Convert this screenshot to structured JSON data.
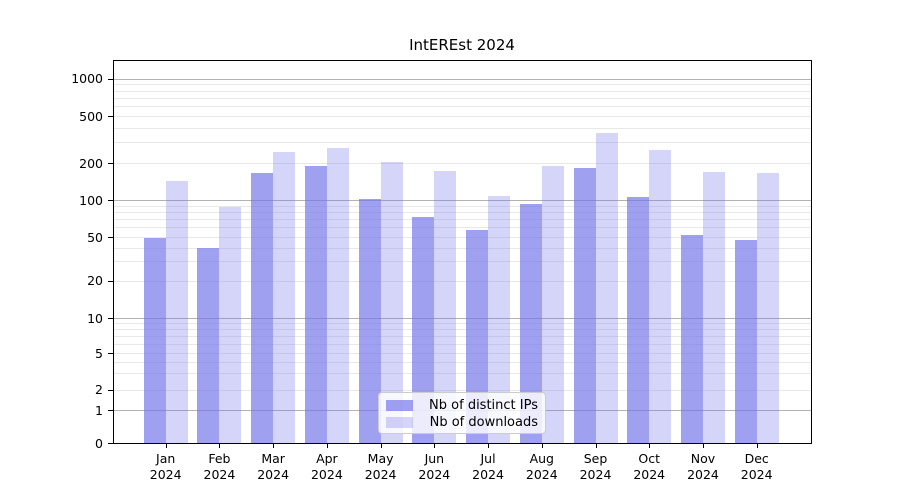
{
  "title": "IntEREst 2024",
  "chart_data": {
    "type": "bar",
    "title": "IntEREst 2024",
    "scale": "log-like (asinh/symlog, includes 0)",
    "categories": [
      "Jan 2024",
      "Feb 2024",
      "Mar 2024",
      "Apr 2024",
      "May 2024",
      "Jun 2024",
      "Jul 2024",
      "Aug 2024",
      "Sep 2024",
      "Oct 2024",
      "Nov 2024",
      "Dec 2024"
    ],
    "series": [
      {
        "name": "Nb of distinct IPs",
        "values": [
          49,
          40,
          166,
          190,
          102,
          73,
          57,
          93,
          182,
          106,
          52,
          47
        ]
      },
      {
        "name": "Nb of downloads",
        "values": [
          144,
          88,
          250,
          270,
          206,
          173,
          108,
          190,
          360,
          260,
          170,
          168
        ]
      }
    ],
    "xlabel": "",
    "ylabel": "",
    "y_tick_labels": [
      "0",
      "1",
      "2",
      "5",
      "10",
      "20",
      "50",
      "100",
      "200",
      "500",
      "1000"
    ],
    "ylim": [
      0,
      1400
    ],
    "grid": "both (major darker, minor lighter)",
    "legend_position": "lower center, inside plot"
  },
  "legend": {
    "items": [
      {
        "label": "Nb of distinct IPs",
        "swatch_color": "rgba(115,115,235,0.68)"
      },
      {
        "label": "Nb of downloads",
        "swatch_color": "rgba(115,115,235,0.30)"
      }
    ]
  },
  "colors": {
    "bar_base": "#7373eb",
    "distinct_ips_rendered": "#a0a0f1",
    "downloads_rendered": "#d5d5f9",
    "major_gridline": "#b2b2b2",
    "minor_gridline": "#e8e8e8",
    "axis": "#000000",
    "text": "#000000"
  }
}
